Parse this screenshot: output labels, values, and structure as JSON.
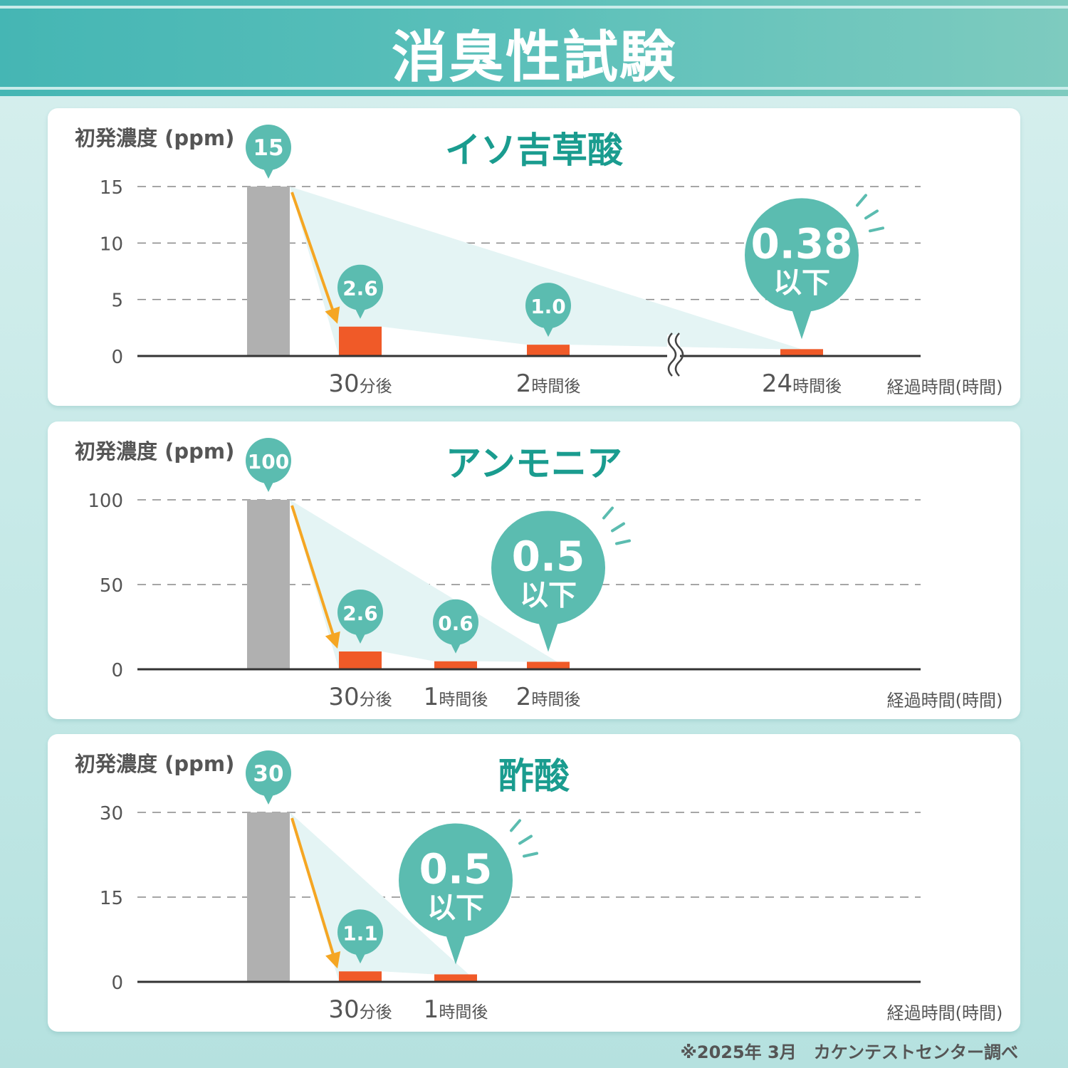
{
  "header": {
    "title": "消臭性試験"
  },
  "footnote": "※2025年 3月　カケンテストセンター調べ",
  "colors": {
    "accent": "#5bbcb0",
    "title_text": "#1a9c8f",
    "initial_bar": "#b0b0b0",
    "after_bar": "#f05a28",
    "arrow": "#f5a623",
    "shade": "#e4f4f4"
  },
  "chart_data": [
    {
      "type": "bar",
      "title": "イソ吉草酸",
      "ylabel": "初発濃度 (ppm)",
      "xlabel": "経過時間(時間)",
      "ylim": [
        0,
        15
      ],
      "yticks": [
        "0",
        "5",
        "10",
        "15"
      ],
      "grid": true,
      "axis_break": true,
      "categories": [
        {
          "num": "",
          "unit": ""
        },
        {
          "num": "30",
          "unit": "分後"
        },
        {
          "num": "2",
          "unit": "時間後"
        },
        {
          "num": "24",
          "unit": "時間後"
        }
      ],
      "values": [
        15,
        2.6,
        1.0,
        0.38
      ],
      "value_labels": [
        "15",
        "2.6",
        "1.0",
        "0.38"
      ],
      "below_flags": [
        false,
        false,
        false,
        true
      ],
      "below_label": "以下"
    },
    {
      "type": "bar",
      "title": "アンモニア",
      "ylabel": "初発濃度 (ppm)",
      "xlabel": "経過時間(時間)",
      "ylim": [
        0,
        100
      ],
      "yticks": [
        "0",
        "50",
        "100"
      ],
      "grid": true,
      "axis_break": false,
      "categories": [
        {
          "num": "",
          "unit": ""
        },
        {
          "num": "30",
          "unit": "分後"
        },
        {
          "num": "1",
          "unit": "時間後"
        },
        {
          "num": "2",
          "unit": "時間後"
        }
      ],
      "values": [
        100,
        2.6,
        0.6,
        0.5
      ],
      "value_labels": [
        "100",
        "2.6",
        "0.6",
        "0.5"
      ],
      "below_flags": [
        false,
        false,
        false,
        true
      ],
      "below_label": "以下"
    },
    {
      "type": "bar",
      "title": "酢酸",
      "ylabel": "初発濃度 (ppm)",
      "xlabel": "経過時間(時間)",
      "ylim": [
        0,
        30
      ],
      "yticks": [
        "0",
        "15",
        "30"
      ],
      "grid": true,
      "axis_break": false,
      "categories": [
        {
          "num": "",
          "unit": ""
        },
        {
          "num": "30",
          "unit": "分後"
        },
        {
          "num": "1",
          "unit": "時間後"
        }
      ],
      "values": [
        30,
        1.1,
        0.5
      ],
      "value_labels": [
        "30",
        "1.1",
        "0.5"
      ],
      "below_flags": [
        false,
        false,
        true
      ],
      "below_label": "以下"
    }
  ]
}
